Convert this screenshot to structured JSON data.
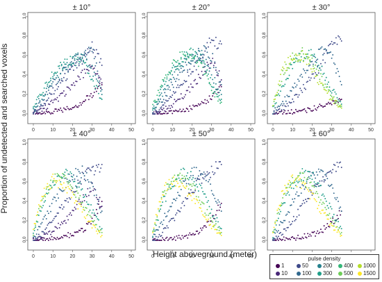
{
  "y_axis_label": "Proportion of undetected and searched  voxels",
  "x_axis_label": "Height aboveground (meter)",
  "legend": {
    "title": "pulse density",
    "entries": [
      {
        "label": "1",
        "color": "#440154"
      },
      {
        "label": "10",
        "color": "#482878"
      },
      {
        "label": "50",
        "color": "#3e4989"
      },
      {
        "label": "100",
        "color": "#31688e"
      },
      {
        "label": "200",
        "color": "#26828e"
      },
      {
        "label": "300",
        "color": "#1f9e89"
      },
      {
        "label": "400",
        "color": "#35b779"
      },
      {
        "label": "500",
        "color": "#6ece58"
      },
      {
        "label": "1000",
        "color": "#b5de2b"
      },
      {
        "label": "1500",
        "color": "#fde725"
      }
    ]
  },
  "chart_data": {
    "type": "scatter",
    "xlim": [
      0,
      50
    ],
    "ylim": [
      0,
      1.0
    ],
    "xticks": [
      "0",
      "10",
      "20",
      "30",
      "40",
      "50"
    ],
    "yticks": [
      "0.0",
      "0.2",
      "0.4",
      "0.6",
      "0.8",
      "1.0"
    ],
    "xlabel": "Height aboveground (meter)",
    "ylabel": "Proportion of undetected and searched  voxels",
    "panels": [
      {
        "title": "± 10°",
        "series": [
          {
            "name": "1",
            "x": [
              0,
              5,
              10,
              15,
              20,
              25,
              30,
              35
            ],
            "y": [
              0.0,
              0.01,
              0.02,
              0.04,
              0.07,
              0.12,
              0.2,
              0.3
            ]
          },
          {
            "name": "10",
            "x": [
              0,
              5,
              10,
              15,
              20,
              25,
              30,
              35
            ],
            "y": [
              0.0,
              0.05,
              0.12,
              0.2,
              0.3,
              0.4,
              0.5,
              0.32
            ]
          },
          {
            "name": "50",
            "x": [
              0,
              5,
              10,
              15,
              20,
              25,
              30,
              35
            ],
            "y": [
              0.0,
              0.1,
              0.23,
              0.35,
              0.45,
              0.55,
              0.7,
              0.5
            ]
          },
          {
            "name": "100",
            "x": [
              0,
              5,
              10,
              15,
              20,
              25,
              30,
              35
            ],
            "y": [
              0.02,
              0.15,
              0.3,
              0.42,
              0.52,
              0.6,
              0.65,
              0.25
            ]
          },
          {
            "name": "200",
            "x": [
              0,
              5,
              10,
              15,
              20,
              25,
              30,
              35
            ],
            "y": [
              0.04,
              0.2,
              0.35,
              0.47,
              0.55,
              0.6,
              0.45,
              0.2
            ]
          },
          {
            "name": "300",
            "x": [
              0,
              5,
              10,
              15,
              20,
              25,
              30,
              35
            ],
            "y": [
              0.06,
              0.25,
              0.4,
              0.5,
              0.55,
              0.55,
              0.35,
              0.15
            ]
          }
        ]
      },
      {
        "title": "± 20°",
        "series": [
          {
            "name": "1",
            "x": [
              0,
              5,
              10,
              15,
              20,
              25,
              30,
              35
            ],
            "y": [
              0.0,
              0.01,
              0.02,
              0.03,
              0.06,
              0.1,
              0.17,
              0.28
            ]
          },
          {
            "name": "10",
            "x": [
              0,
              5,
              10,
              15,
              20,
              25,
              30,
              35
            ],
            "y": [
              0.0,
              0.04,
              0.1,
              0.18,
              0.28,
              0.4,
              0.55,
              0.35
            ]
          },
          {
            "name": "50",
            "x": [
              0,
              5,
              10,
              15,
              20,
              25,
              30,
              35
            ],
            "y": [
              0.0,
              0.08,
              0.2,
              0.33,
              0.45,
              0.58,
              0.75,
              0.72
            ]
          },
          {
            "name": "100",
            "x": [
              0,
              5,
              10,
              15,
              20,
              25,
              30,
              35
            ],
            "y": [
              0.02,
              0.15,
              0.3,
              0.45,
              0.55,
              0.65,
              0.6,
              0.3
            ]
          },
          {
            "name": "200",
            "x": [
              0,
              5,
              10,
              15,
              20,
              25,
              30,
              35
            ],
            "y": [
              0.04,
              0.22,
              0.4,
              0.52,
              0.6,
              0.6,
              0.4,
              0.2
            ]
          },
          {
            "name": "300",
            "x": [
              0,
              5,
              10,
              15,
              20,
              25,
              30,
              35
            ],
            "y": [
              0.06,
              0.28,
              0.45,
              0.57,
              0.62,
              0.55,
              0.3,
              0.15
            ]
          },
          {
            "name": "400",
            "x": [
              0,
              5,
              10,
              15,
              20,
              25,
              30,
              35
            ],
            "y": [
              0.08,
              0.32,
              0.5,
              0.6,
              0.62,
              0.5,
              0.25,
              0.12
            ]
          }
        ]
      },
      {
        "title": "± 30°",
        "series": [
          {
            "name": "1",
            "x": [
              0,
              5,
              10,
              15,
              20,
              25,
              30,
              35
            ],
            "y": [
              0.0,
              0.01,
              0.02,
              0.03,
              0.05,
              0.08,
              0.12,
              0.15
            ]
          },
          {
            "name": "50",
            "x": [
              0,
              5,
              10,
              15,
              20,
              25,
              30,
              35
            ],
            "y": [
              0.0,
              0.06,
              0.14,
              0.25,
              0.38,
              0.52,
              0.72,
              0.75
            ]
          },
          {
            "name": "100",
            "x": [
              0,
              5,
              10,
              15,
              20,
              25,
              30,
              35
            ],
            "y": [
              0.02,
              0.12,
              0.25,
              0.4,
              0.55,
              0.65,
              0.6,
              0.3
            ]
          },
          {
            "name": "300",
            "x": [
              0,
              5,
              10,
              15,
              20,
              25,
              30,
              35
            ],
            "y": [
              0.05,
              0.3,
              0.5,
              0.6,
              0.6,
              0.45,
              0.25,
              0.1
            ]
          },
          {
            "name": "500",
            "x": [
              0,
              5,
              10,
              15,
              20,
              25,
              30,
              35
            ],
            "y": [
              0.08,
              0.4,
              0.58,
              0.62,
              0.55,
              0.35,
              0.18,
              0.08
            ]
          },
          {
            "name": "1000",
            "x": [
              0,
              5,
              10,
              15,
              20,
              25,
              30,
              35
            ],
            "y": [
              0.1,
              0.45,
              0.6,
              0.6,
              0.48,
              0.28,
              0.15,
              0.06
            ]
          }
        ]
      },
      {
        "title": "± 40°",
        "series": [
          {
            "name": "1",
            "x": [
              0,
              5,
              10,
              15,
              20,
              25,
              30,
              35
            ],
            "y": [
              0.0,
              0.01,
              0.02,
              0.04,
              0.06,
              0.1,
              0.2,
              0.4
            ]
          },
          {
            "name": "10",
            "x": [
              0,
              5,
              10,
              15,
              20,
              25,
              30,
              35
            ],
            "y": [
              0.0,
              0.04,
              0.1,
              0.18,
              0.28,
              0.42,
              0.55,
              0.35
            ]
          },
          {
            "name": "50",
            "x": [
              0,
              5,
              10,
              15,
              20,
              25,
              30,
              35
            ],
            "y": [
              0.0,
              0.08,
              0.2,
              0.35,
              0.5,
              0.65,
              0.72,
              0.78
            ]
          },
          {
            "name": "100",
            "x": [
              0,
              5,
              10,
              15,
              20,
              25,
              30,
              35
            ],
            "y": [
              0.02,
              0.2,
              0.38,
              0.55,
              0.68,
              0.7,
              0.55,
              0.3
            ]
          },
          {
            "name": "300",
            "x": [
              0,
              5,
              10,
              15,
              20,
              25,
              30,
              35
            ],
            "y": [
              0.05,
              0.38,
              0.58,
              0.68,
              0.66,
              0.5,
              0.3,
              0.12
            ]
          },
          {
            "name": "500",
            "x": [
              0,
              5,
              10,
              15,
              20,
              25,
              30,
              35
            ],
            "y": [
              0.08,
              0.45,
              0.62,
              0.64,
              0.55,
              0.38,
              0.2,
              0.08
            ]
          },
          {
            "name": "1500",
            "x": [
              0,
              5,
              10,
              15,
              20,
              25,
              30,
              35
            ],
            "y": [
              0.1,
              0.5,
              0.62,
              0.58,
              0.45,
              0.3,
              0.15,
              0.05
            ]
          }
        ]
      },
      {
        "title": "± 50°",
        "series": [
          {
            "name": "1",
            "x": [
              0,
              5,
              10,
              15,
              20,
              25,
              30,
              35
            ],
            "y": [
              0.0,
              0.01,
              0.02,
              0.04,
              0.06,
              0.1,
              0.2,
              0.38
            ]
          },
          {
            "name": "50",
            "x": [
              0,
              5,
              10,
              15,
              20,
              25,
              30,
              35
            ],
            "y": [
              0.0,
              0.08,
              0.2,
              0.35,
              0.5,
              0.65,
              0.72,
              0.78
            ]
          },
          {
            "name": "100",
            "x": [
              0,
              5,
              10,
              15,
              20,
              25,
              30,
              35
            ],
            "y": [
              0.02,
              0.2,
              0.38,
              0.55,
              0.68,
              0.7,
              0.55,
              0.3
            ]
          },
          {
            "name": "300",
            "x": [
              0,
              5,
              10,
              15,
              20,
              25,
              30,
              35
            ],
            "y": [
              0.05,
              0.38,
              0.58,
              0.68,
              0.66,
              0.5,
              0.3,
              0.12
            ]
          },
          {
            "name": "500",
            "x": [
              0,
              5,
              10,
              15,
              20,
              25,
              30,
              35
            ],
            "y": [
              0.08,
              0.45,
              0.62,
              0.64,
              0.55,
              0.38,
              0.2,
              0.08
            ]
          },
          {
            "name": "1500",
            "x": [
              0,
              5,
              10,
              15,
              20,
              25,
              30,
              35
            ],
            "y": [
              0.1,
              0.5,
              0.62,
              0.58,
              0.45,
              0.3,
              0.15,
              0.05
            ]
          }
        ]
      },
      {
        "title": "± 60°",
        "series": [
          {
            "name": "1",
            "x": [
              0,
              5,
              10,
              15,
              20,
              25,
              30,
              35
            ],
            "y": [
              0.0,
              0.01,
              0.02,
              0.04,
              0.06,
              0.1,
              0.18,
              0.3
            ]
          },
          {
            "name": "50",
            "x": [
              0,
              5,
              10,
              15,
              20,
              25,
              30,
              35
            ],
            "y": [
              0.0,
              0.08,
              0.2,
              0.35,
              0.5,
              0.62,
              0.72,
              0.75
            ]
          },
          {
            "name": "100",
            "x": [
              0,
              5,
              10,
              15,
              20,
              25,
              30,
              35
            ],
            "y": [
              0.02,
              0.2,
              0.38,
              0.55,
              0.68,
              0.7,
              0.55,
              0.3
            ]
          },
          {
            "name": "300",
            "x": [
              0,
              5,
              10,
              15,
              20,
              25,
              30,
              35
            ],
            "y": [
              0.05,
              0.38,
              0.58,
              0.68,
              0.66,
              0.5,
              0.3,
              0.12
            ]
          },
          {
            "name": "500",
            "x": [
              0,
              5,
              10,
              15,
              20,
              25,
              30,
              35
            ],
            "y": [
              0.08,
              0.45,
              0.62,
              0.64,
              0.55,
              0.38,
              0.2,
              0.08
            ]
          },
          {
            "name": "1500",
            "x": [
              0,
              5,
              10,
              15,
              20,
              25,
              30,
              35
            ],
            "y": [
              0.1,
              0.5,
              0.62,
              0.58,
              0.45,
              0.3,
              0.15,
              0.05
            ]
          }
        ]
      }
    ]
  }
}
